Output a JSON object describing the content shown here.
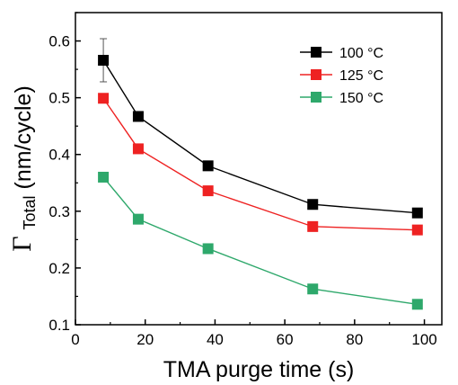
{
  "chart_data": {
    "type": "line",
    "xlabel": "TMA purge time (s)",
    "ylabel_symbol": "Γ",
    "ylabel_subscript": "Total",
    "ylabel_rest": " (nm/cycle)",
    "xlim": [
      0,
      105
    ],
    "ylim": [
      0.1,
      0.65
    ],
    "xticks": [
      0,
      20,
      40,
      60,
      80,
      100
    ],
    "yticks": [
      0.1,
      0.2,
      0.3,
      0.4,
      0.5,
      0.6
    ],
    "x": [
      8,
      18,
      38,
      68,
      98
    ],
    "legend_position": "top-right",
    "series": [
      {
        "name": "100 °C",
        "color": "#000000",
        "values": [
          0.566,
          0.467,
          0.38,
          0.312,
          0.297
        ],
        "error": [
          0.038,
          null,
          null,
          null,
          null
        ]
      },
      {
        "name": "125 °C",
        "color": "#ee2222",
        "values": [
          0.499,
          0.41,
          0.336,
          0.273,
          0.267
        ],
        "error": [
          null,
          null,
          null,
          null,
          null
        ]
      },
      {
        "name": "150 °C",
        "color": "#2ea86b",
        "values": [
          0.36,
          0.286,
          0.234,
          0.163,
          0.136
        ],
        "error": [
          null,
          null,
          null,
          null,
          null
        ]
      }
    ]
  }
}
